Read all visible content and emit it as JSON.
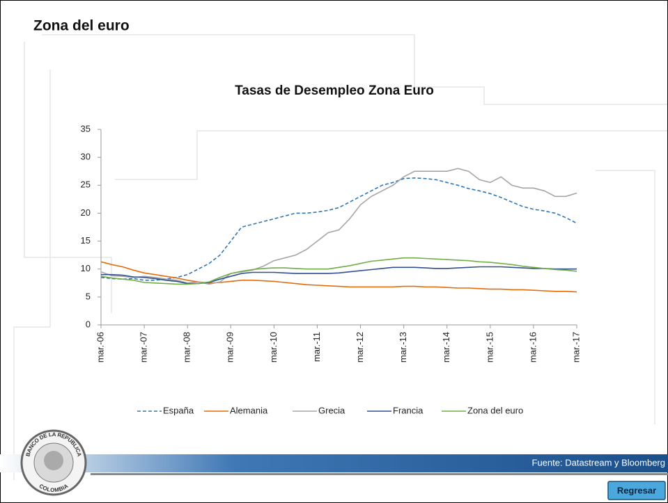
{
  "slide_title": "Zona del euro",
  "source": "Fuente: Datastream y Bloomberg",
  "button": "Regresar",
  "logo": {
    "top": "BANCO DE LA REPUBLICA",
    "bottom": "COLOMBIA"
  },
  "chart_data": {
    "type": "line",
    "title": "Tasas de Desempleo Zona Euro",
    "categories": [
      "mar.-06",
      null,
      null,
      null,
      "mar.-07",
      null,
      null,
      null,
      "mar.-08",
      null,
      null,
      null,
      "mar.-09",
      null,
      null,
      null,
      "mar.-10",
      null,
      null,
      null,
      "mar.-11",
      null,
      null,
      null,
      "mar.-12",
      null,
      null,
      null,
      "mar.-13",
      null,
      null,
      null,
      "mar.-14",
      null,
      null,
      null,
      "mar.-15",
      null,
      null,
      null,
      "mar.-16",
      null,
      null,
      null,
      "mar.-17"
    ],
    "series": [
      {
        "name": "España",
        "color": "#2e75b6",
        "dashed": true,
        "values": [
          8.5,
          8.3,
          8.2,
          8.3,
          8.0,
          8.0,
          8.2,
          8.5,
          9.0,
          10.0,
          11.0,
          12.5,
          15,
          17.5,
          18,
          18.5,
          19,
          19.5,
          20,
          20,
          20.2,
          20.5,
          21,
          22,
          23,
          24,
          25,
          25.5,
          26.2,
          26.3,
          26.2,
          26,
          25.5,
          25,
          24.4,
          24,
          23.5,
          22.8,
          22,
          21.2,
          20.7,
          20.4,
          20,
          19.2,
          18.2
        ]
      },
      {
        "name": "Alemania",
        "color": "#e36c09",
        "values": [
          11.3,
          10.8,
          10.4,
          9.8,
          9.3,
          9.0,
          8.7,
          8.4,
          8.0,
          7.7,
          7.5,
          7.6,
          7.8,
          8.0,
          8.0,
          7.9,
          7.8,
          7.6,
          7.4,
          7.2,
          7.1,
          7.0,
          6.9,
          6.8,
          6.8,
          6.8,
          6.8,
          6.8,
          6.9,
          6.9,
          6.8,
          6.8,
          6.7,
          6.6,
          6.6,
          6.5,
          6.4,
          6.4,
          6.3,
          6.3,
          6.2,
          6.1,
          6.0,
          6.0,
          5.9
        ]
      },
      {
        "name": "Grecia",
        "color": "#a5a5a5",
        "values": [
          9.5,
          8.8,
          8.7,
          8.5,
          8.7,
          8.5,
          8.2,
          8.0,
          7.5,
          7.7,
          7.3,
          7.7,
          9.2,
          9.5,
          9.8,
          10.5,
          11.5,
          12.0,
          12.5,
          13.5,
          15,
          16.5,
          17,
          19,
          21.5,
          23,
          24,
          25,
          26.5,
          27.5,
          27.5,
          27.5,
          27.5,
          28,
          27.5,
          26,
          25.5,
          26.5,
          25,
          24.5,
          24.5,
          24,
          23,
          23,
          23.6
        ]
      },
      {
        "name": "Francia",
        "color": "#2f4f8f",
        "values": [
          9.0,
          9.0,
          8.9,
          8.6,
          8.5,
          8.3,
          8.0,
          7.8,
          7.4,
          7.4,
          7.6,
          8.2,
          8.7,
          9.2,
          9.4,
          9.4,
          9.4,
          9.3,
          9.2,
          9.2,
          9.2,
          9.2,
          9.3,
          9.5,
          9.7,
          9.9,
          10.1,
          10.3,
          10.3,
          10.3,
          10.2,
          10.1,
          10.1,
          10.2,
          10.3,
          10.4,
          10.4,
          10.4,
          10.3,
          10.2,
          10.1,
          10.1,
          10.0,
          10.0,
          10.0
        ]
      },
      {
        "name": "Zona del euro",
        "color": "#70ad47",
        "values": [
          8.7,
          8.4,
          8.2,
          8.0,
          7.6,
          7.5,
          7.4,
          7.3,
          7.3,
          7.4,
          7.7,
          8.5,
          9.2,
          9.6,
          9.9,
          10.1,
          10.2,
          10.2,
          10.1,
          10.0,
          10.0,
          10.0,
          10.3,
          10.6,
          11.0,
          11.4,
          11.6,
          11.8,
          12.0,
          12.0,
          11.9,
          11.8,
          11.7,
          11.6,
          11.5,
          11.3,
          11.2,
          11.0,
          10.8,
          10.5,
          10.3,
          10.1,
          9.9,
          9.8,
          9.6
        ]
      }
    ],
    "ylim": [
      0,
      35
    ],
    "yticks": [
      0,
      5,
      10,
      15,
      20,
      25,
      30,
      35
    ],
    "legend": "bottom"
  }
}
